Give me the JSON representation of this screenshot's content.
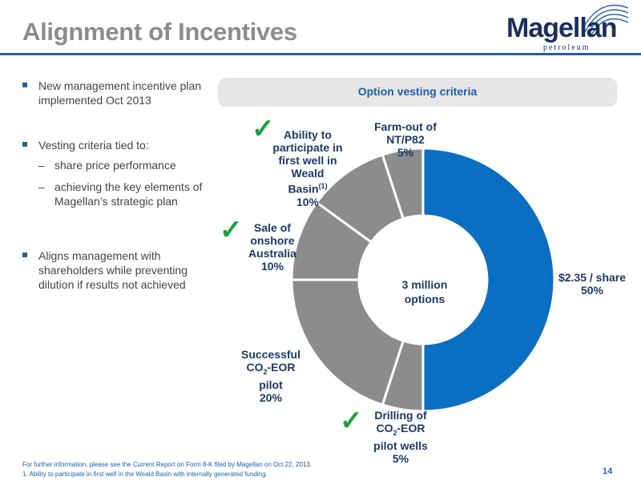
{
  "header": {
    "title": "Alignment of Incentives",
    "logo_text": "Magellan",
    "logo_sub": "petroleum"
  },
  "bullets": {
    "b1": "New management incentive plan implemented Oct 2013",
    "b2": "Vesting criteria tied to:",
    "b2_subs": [
      "share price performance",
      "achieving the key elements of Magellan’s strategic plan"
    ],
    "b3": "Aligns management with shareholders while preventing dilution if results not achieved"
  },
  "vesting": {
    "title": "Option vesting criteria"
  },
  "chart_data": {
    "type": "pie",
    "title": "",
    "center_label": [
      "3 million",
      "options"
    ],
    "slices": [
      {
        "name": "$2.35 / share",
        "value": 50,
        "label": "50%",
        "color": "#0a6fc2",
        "checked": false
      },
      {
        "name": "Drilling of CO2-EOR pilot wells",
        "value": 5,
        "label": "5%",
        "color": "#8c8c8c",
        "checked": true
      },
      {
        "name": "Successful CO2-EOR pilot",
        "value": 20,
        "label": "20%",
        "color": "#8c8c8c",
        "checked": false
      },
      {
        "name": "Sale of onshore Australia",
        "value": 10,
        "label": "10%",
        "color": "#8c8c8c",
        "checked": true
      },
      {
        "name": "Ability to participate in first well in Weald Basin(1)",
        "value": 10,
        "label": "10%",
        "color": "#8c8c8c",
        "checked": true
      },
      {
        "name": "Farm-out of NT/P82",
        "value": 5,
        "label": "5%",
        "color": "#8c8c8c",
        "checked": false
      }
    ]
  },
  "labels": {
    "share_l1": "$2.35 / share",
    "share_pct": "50%",
    "drill_l1": "Drilling of",
    "drill_l2a": "CO",
    "drill_sub": "2",
    "drill_l2b": "-EOR",
    "drill_l3": "pilot wells",
    "drill_pct": "5%",
    "co2_l1": "Successful",
    "co2_l2a": "CO",
    "co2_sub": "2",
    "co2_l2b": "-EOR",
    "co2_l3": "pilot",
    "co2_pct": "20%",
    "sale_l1": "Sale of",
    "sale_l2": "onshore",
    "sale_l3": "Australia",
    "sale_pct": "10%",
    "weald_l1": "Ability to",
    "weald_l2": "participate in",
    "weald_l3": "first well in",
    "weald_l4": "Weald",
    "weald_l5": "Basin",
    "weald_sup": "(1)",
    "weald_pct": "10%",
    "farm_l1": "Farm-out of",
    "farm_l2": "NT/P82",
    "farm_pct": "5%",
    "check": "✓"
  },
  "footer": {
    "note1": "For further information, please see the Current Report on Form 8-K filed by Magellan on Oct 22, 2013.",
    "note2": "1. Ability to participate in first well in the Weald Basin with internally generated funding.",
    "page": "14"
  },
  "colors": {
    "accent": "#1f5fae",
    "check": "#18a23c",
    "blue_slice": "#0a6fc2",
    "gray_slice": "#8c8c8c"
  }
}
